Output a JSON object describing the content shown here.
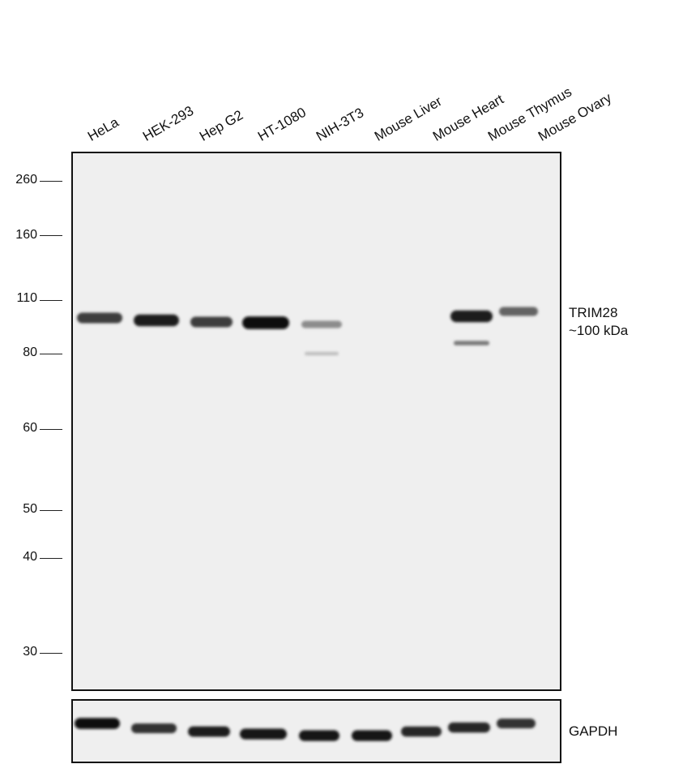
{
  "lanes": [
    "HeLa",
    "HEK-293",
    "Hep G2",
    "HT-1080",
    "NIH-3T3",
    "Mouse Liver",
    "Mouse Heart",
    "Mouse Thymus",
    "Mouse Ovary"
  ],
  "mw_markers": [
    "260",
    "160",
    "110",
    "80",
    "60",
    "50",
    "40",
    "30"
  ],
  "target": {
    "name": "TRIM28",
    "size": "~100 kDa"
  },
  "loading_control": "GAPDH",
  "band_intensity": {
    "trim28": [
      0.7,
      0.85,
      0.7,
      0.95,
      0.3,
      0.0,
      0.0,
      0.85,
      0.5
    ],
    "trim28_lower": [
      0,
      0,
      0,
      0,
      0.05,
      0,
      0,
      0.4,
      0
    ],
    "gapdh": [
      0.95,
      0.75,
      0.85,
      0.9,
      0.9,
      0.9,
      0.8,
      0.8,
      0.75
    ]
  }
}
